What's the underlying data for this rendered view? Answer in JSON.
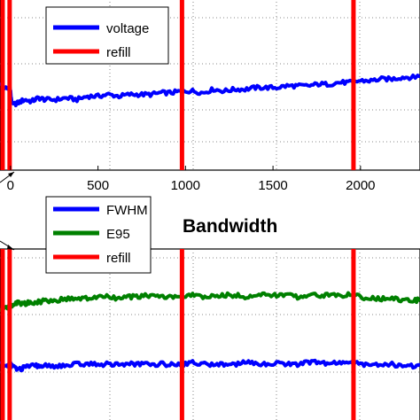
{
  "chart_data": [
    {
      "type": "line",
      "title": "",
      "xlabel": "",
      "ylabel": "",
      "x_ticks": [
        0,
        500,
        1000,
        1500,
        2000
      ],
      "xlim": [
        -60,
        2340
      ],
      "ylim": [
        0,
        1
      ],
      "grid": true,
      "legend_position": "top-left",
      "legend": [
        {
          "label": "voltage",
          "color": "#0000FF"
        },
        {
          "label": "refill",
          "color": "#FF0000"
        }
      ],
      "series": [
        {
          "name": "voltage",
          "color": "#0000FF",
          "x": [
            -60,
            -20,
            -5,
            10,
            40,
            80,
            120,
            160,
            200,
            260,
            320,
            380,
            440,
            500,
            560,
            620,
            680,
            740,
            800,
            860,
            920,
            980,
            1040,
            1100,
            1160,
            1220,
            1280,
            1340,
            1400,
            1460,
            1520,
            1580,
            1640,
            1700,
            1760,
            1820,
            1880,
            1940,
            2000,
            2060,
            2120,
            2180,
            2240,
            2300,
            2340
          ],
          "values": [
            0.5,
            0.47,
            0.49,
            0.38,
            0.39,
            0.41,
            0.4,
            0.42,
            0.41,
            0.41,
            0.42,
            0.41,
            0.43,
            0.43,
            0.44,
            0.43,
            0.44,
            0.44,
            0.44,
            0.45,
            0.45,
            0.46,
            0.46,
            0.45,
            0.47,
            0.46,
            0.47,
            0.47,
            0.48,
            0.48,
            0.48,
            0.49,
            0.49,
            0.49,
            0.5,
            0.5,
            0.51,
            0.51,
            0.52,
            0.52,
            0.53,
            0.53,
            0.54,
            0.54,
            0.55
          ]
        }
      ],
      "refill_lines_x": [
        -45,
        -5,
        980,
        1960
      ]
    },
    {
      "type": "line",
      "title": "Bandwidth",
      "xlabel": "",
      "ylabel": "",
      "xlim": [
        -60,
        2340
      ],
      "ylim": [
        0,
        1
      ],
      "grid": true,
      "legend_position": "top-left",
      "legend": [
        {
          "label": "FWHM",
          "color": "#0000FF"
        },
        {
          "label": "E95",
          "color": "#008000"
        },
        {
          "label": "refill",
          "color": "#FF0000"
        }
      ],
      "series": [
        {
          "name": "E95",
          "color": "#008000",
          "x": [
            -60,
            -20,
            -5,
            10,
            40,
            80,
            120,
            160,
            200,
            260,
            320,
            380,
            440,
            500,
            560,
            620,
            680,
            740,
            800,
            860,
            920,
            980,
            1040,
            1100,
            1160,
            1220,
            1280,
            1340,
            1400,
            1460,
            1520,
            1580,
            1640,
            1700,
            1760,
            1820,
            1880,
            1940,
            2000,
            2060,
            2120,
            2180,
            2240,
            2300,
            2340
          ],
          "values": [
            0.66,
            0.67,
            0.68,
            0.68,
            0.7,
            0.69,
            0.7,
            0.7,
            0.71,
            0.71,
            0.72,
            0.72,
            0.72,
            0.73,
            0.73,
            0.72,
            0.73,
            0.73,
            0.74,
            0.73,
            0.73,
            0.73,
            0.74,
            0.73,
            0.73,
            0.74,
            0.74,
            0.73,
            0.74,
            0.74,
            0.74,
            0.74,
            0.73,
            0.74,
            0.74,
            0.74,
            0.74,
            0.74,
            0.73,
            0.72,
            0.72,
            0.72,
            0.71,
            0.71,
            0.71
          ]
        },
        {
          "name": "FWHM",
          "color": "#0000FF",
          "x": [
            -60,
            -20,
            -5,
            10,
            40,
            80,
            120,
            160,
            200,
            260,
            320,
            380,
            440,
            500,
            560,
            620,
            680,
            740,
            800,
            860,
            920,
            980,
            1040,
            1100,
            1160,
            1220,
            1280,
            1340,
            1400,
            1460,
            1520,
            1580,
            1640,
            1700,
            1760,
            1820,
            1880,
            1940,
            2000,
            2060,
            2120,
            2180,
            2240,
            2300,
            2340
          ],
          "values": [
            0.35,
            0.34,
            0.35,
            0.34,
            0.32,
            0.33,
            0.34,
            0.34,
            0.34,
            0.34,
            0.34,
            0.35,
            0.35,
            0.35,
            0.35,
            0.35,
            0.35,
            0.35,
            0.35,
            0.35,
            0.35,
            0.35,
            0.36,
            0.35,
            0.35,
            0.35,
            0.35,
            0.36,
            0.35,
            0.35,
            0.36,
            0.35,
            0.35,
            0.36,
            0.36,
            0.35,
            0.36,
            0.36,
            0.35,
            0.35,
            0.35,
            0.35,
            0.34,
            0.34,
            0.34
          ]
        }
      ],
      "refill_lines_x": [
        -45,
        -5,
        980,
        1960
      ]
    }
  ]
}
